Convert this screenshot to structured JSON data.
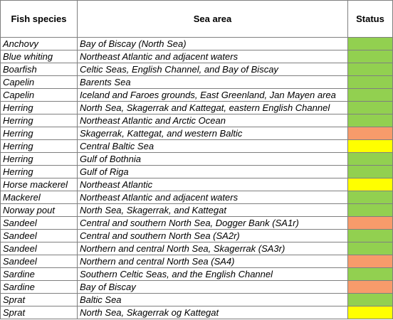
{
  "table": {
    "headers": [
      "Fish species",
      "Sea area",
      "Status"
    ],
    "status_colors": {
      "green": "#92d050",
      "orange": "#f79b6b",
      "yellow": "#ffff00"
    },
    "rows": [
      {
        "species": "Anchovy",
        "area": "Bay of Biscay (North Sea)",
        "status": "green"
      },
      {
        "species": "Blue whiting",
        "area": "Northeast Atlantic and adjacent waters",
        "status": "green"
      },
      {
        "species": "Boarfish",
        "area": "Celtic Seas, English Channel, and Bay of Biscay",
        "status": "green"
      },
      {
        "species": "Capelin",
        "area": "Barents Sea",
        "status": "green"
      },
      {
        "species": "Capelin",
        "area": "Iceland and Faroes grounds, East Greenland, Jan Mayen area",
        "status": "green"
      },
      {
        "species": "Herring",
        "area": "North Sea, Skagerrak and Kattegat, eastern English Channel",
        "status": "green"
      },
      {
        "species": "Herring",
        "area": "Northeast Atlantic and Arctic Ocean",
        "status": "green"
      },
      {
        "species": "Herring",
        "area": "Skagerrak, Kattegat, and western Baltic",
        "status": "orange"
      },
      {
        "species": "Herring",
        "area": "Central Baltic Sea",
        "status": "yellow"
      },
      {
        "species": "Herring",
        "area": "Gulf of Bothnia",
        "status": "green"
      },
      {
        "species": "Herring",
        "area": "Gulf of Riga",
        "status": "green"
      },
      {
        "species": "Horse mackerel",
        "area": "Northeast Atlantic",
        "status": "yellow"
      },
      {
        "species": "Mackerel",
        "area": "Northeast  Atlantic  and  adjacent waters",
        "status": "green"
      },
      {
        "species": "Norway pout",
        "area": "North Sea, Skagerrak, and Kattegat",
        "status": "green"
      },
      {
        "species": "Sandeel",
        "area": "Central  and  southern  North  Sea,  Dogger Bank (SA1r)",
        "status": "orange"
      },
      {
        "species": "Sandeel",
        "area": "Central  and  southern North Sea (SA2r)",
        "status": "green"
      },
      {
        "species": "Sandeel",
        "area": "Northern  and  central North Sea, Skagerrak (SA3r)",
        "status": "green"
      },
      {
        "species": "Sandeel",
        "area": "Northern and central North Sea (SA4)",
        "status": "orange"
      },
      {
        "species": "Sardine",
        "area": "Southern Celtic Seas, and the English Channel",
        "status": "green"
      },
      {
        "species": "Sardine",
        "area": "Bay of Biscay",
        "status": "orange"
      },
      {
        "species": "Sprat",
        "area": "Baltic Sea",
        "status": "green"
      },
      {
        "species": "Sprat",
        "area": "North Sea, Skagerrak og Kattegat",
        "status": "yellow"
      }
    ]
  }
}
